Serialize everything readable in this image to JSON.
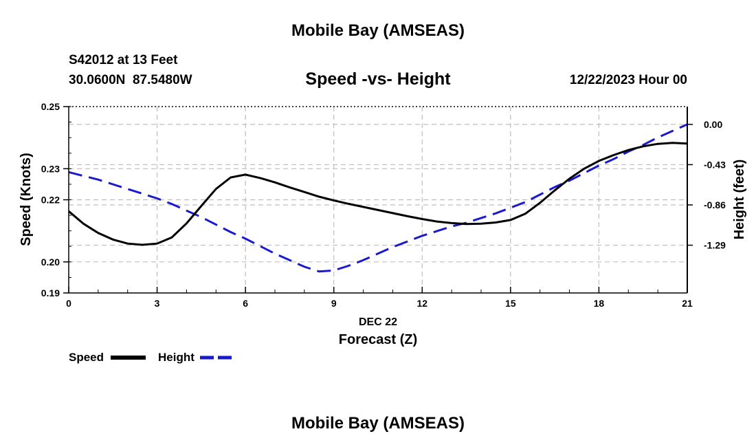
{
  "header": {
    "title_top": "Mobile Bay (AMSEAS)",
    "station": "S42012 at 13 Feet",
    "coords": "30.0600N  87.5480W",
    "subtitle": "Speed -vs- Height",
    "date": "12/22/2023 Hour 00",
    "title_bottom": "Mobile Bay (AMSEAS)"
  },
  "legend": {
    "speed_label": "Speed",
    "height_label": "Height"
  },
  "chart_data": {
    "type": "line",
    "title": "Speed -vs- Height",
    "xlabel": "Forecast (Z)",
    "xlabel_date": "DEC 22",
    "ylabel_left": "Speed (Knots)",
    "ylabel_right": "Height (feet)",
    "xlim": [
      0,
      21
    ],
    "ylim_left": [
      0.19,
      0.25
    ],
    "ylim_right": [
      -1.8,
      0.19
    ],
    "x_ticks": [
      0,
      3,
      6,
      9,
      12,
      15,
      18,
      21
    ],
    "x_tick_labels": [
      "0",
      "3",
      "6",
      "9",
      "12",
      "15",
      "18",
      "21"
    ],
    "y_left_ticks": [
      0.19,
      0.2,
      0.22,
      0.23,
      0.25
    ],
    "y_left_tick_labels": [
      "0.19",
      "0.20",
      "0.22",
      "0.23",
      "0.25"
    ],
    "y_right_ticks": [
      0.0,
      -0.43,
      -0.86,
      -1.29
    ],
    "y_right_tick_labels": [
      "0.00",
      "-0.43",
      "-0.86",
      "-1.29"
    ],
    "grid": true,
    "legend_position": "bottom-left",
    "series": [
      {
        "name": "Speed",
        "axis": "left",
        "color": "#000000",
        "style": "solid",
        "x": [
          0,
          0.5,
          1,
          1.5,
          2,
          2.5,
          3,
          3.5,
          4,
          4.5,
          5,
          5.5,
          6,
          6.5,
          7,
          7.5,
          8,
          8.5,
          9,
          9.5,
          10,
          10.5,
          11,
          11.5,
          12,
          12.5,
          13,
          13.5,
          14,
          14.5,
          15,
          15.5,
          16,
          16.5,
          17,
          17.5,
          18,
          18.5,
          19,
          19.5,
          20,
          20.5,
          21
        ],
        "values": [
          0.2163,
          0.2123,
          0.2093,
          0.2072,
          0.2059,
          0.2055,
          0.2059,
          0.2079,
          0.2124,
          0.218,
          0.2235,
          0.2272,
          0.2281,
          0.227,
          0.2256,
          0.224,
          0.2225,
          0.221,
          0.2198,
          0.2187,
          0.2177,
          0.2167,
          0.2157,
          0.2147,
          0.2138,
          0.213,
          0.2125,
          0.2122,
          0.2123,
          0.2127,
          0.2135,
          0.2155,
          0.219,
          0.223,
          0.2268,
          0.23,
          0.2325,
          0.2344,
          0.236,
          0.2372,
          0.238,
          0.2383,
          0.2381
        ]
      },
      {
        "name": "Height",
        "axis": "right",
        "color": "#1a1acd",
        "style": "dashed",
        "x": [
          0,
          0.5,
          1,
          1.5,
          2,
          2.5,
          3,
          3.5,
          4,
          4.5,
          5,
          5.5,
          6,
          6.5,
          7,
          7.5,
          8,
          8.5,
          9,
          9.5,
          10,
          10.5,
          11,
          11.5,
          12,
          12.5,
          13,
          13.5,
          14,
          14.5,
          15,
          15.5,
          16,
          16.5,
          17,
          17.5,
          18,
          18.5,
          19,
          19.5,
          20,
          20.5,
          21
        ],
        "values": [
          -0.51,
          -0.55,
          -0.59,
          -0.64,
          -0.69,
          -0.74,
          -0.79,
          -0.85,
          -0.92,
          -0.99,
          -1.07,
          -1.15,
          -1.22,
          -1.3,
          -1.38,
          -1.45,
          -1.52,
          -1.57,
          -1.56,
          -1.51,
          -1.45,
          -1.38,
          -1.31,
          -1.25,
          -1.19,
          -1.14,
          -1.09,
          -1.05,
          -1.0,
          -0.95,
          -0.89,
          -0.83,
          -0.75,
          -0.67,
          -0.6,
          -0.52,
          -0.44,
          -0.37,
          -0.29,
          -0.22,
          -0.14,
          -0.07,
          0.0
        ]
      }
    ]
  }
}
